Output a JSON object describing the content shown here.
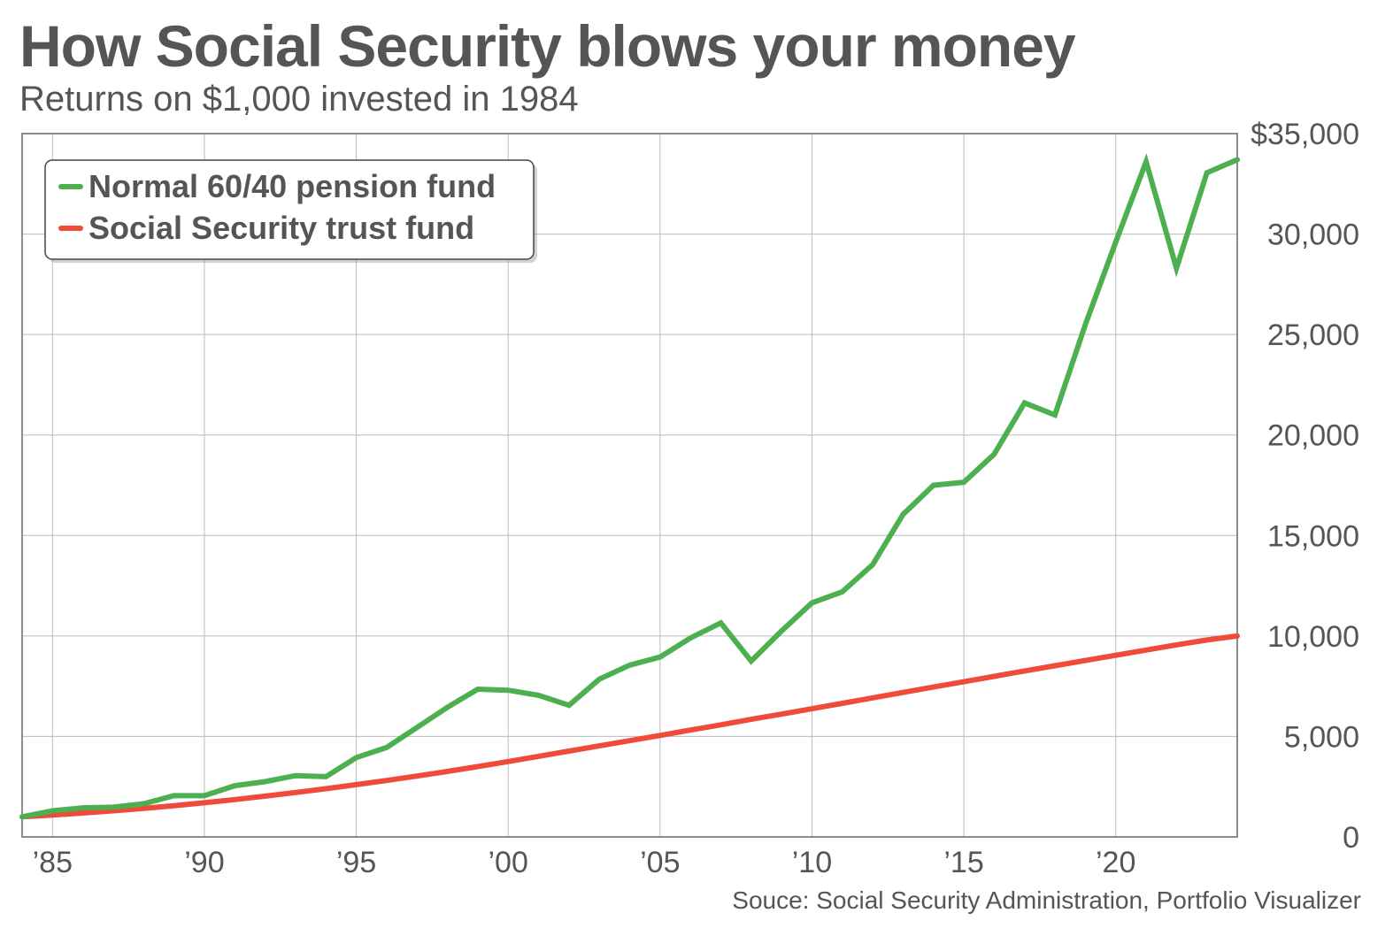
{
  "title": "How Social Security blows your money",
  "subtitle": "Returns on $1,000 invested in 1984",
  "source": "Souce: Social Security Administration, Portfolio Visualizer",
  "colors": {
    "pension": "#4caf50",
    "social_security": "#f04a3a",
    "grid": "#bbbbbb",
    "text": "#555555"
  },
  "chart_data": {
    "type": "line",
    "title": "How Social Security blows your money",
    "subtitle": "Returns on $1,000 invested in 1984",
    "xlim": [
      1984,
      2024
    ],
    "ylim": [
      0,
      35000
    ],
    "grid": true,
    "legend_position": "top-left",
    "x_ticks": [
      1985,
      1990,
      1995,
      2000,
      2005,
      2010,
      2015,
      2020
    ],
    "x_tick_labels": [
      "’85",
      "’90",
      "’95",
      "’00",
      "’05",
      "’10",
      "’15",
      "’20"
    ],
    "y_ticks": [
      0,
      5000,
      10000,
      15000,
      20000,
      25000,
      30000,
      35000
    ],
    "y_tick_labels": [
      "0",
      "5,000",
      "10,000",
      "15,000",
      "20,000",
      "25,000",
      "30,000",
      "$35,000"
    ],
    "x": [
      1984,
      1985,
      1986,
      1987,
      1988,
      1989,
      1990,
      1991,
      1992,
      1993,
      1994,
      1995,
      1996,
      1997,
      1998,
      1999,
      2000,
      2001,
      2002,
      2003,
      2004,
      2005,
      2006,
      2007,
      2008,
      2009,
      2010,
      2011,
      2012,
      2013,
      2014,
      2015,
      2016,
      2017,
      2018,
      2019,
      2020,
      2021,
      2022,
      2023,
      2024
    ],
    "series": [
      {
        "name": "Normal 60/40 pension fund",
        "values": [
          1000,
          1300,
          1450,
          1480,
          1650,
          2050,
          2050,
          2550,
          2750,
          3050,
          3000,
          3950,
          4450,
          5450,
          6450,
          7350,
          7300,
          7050,
          6550,
          7850,
          8550,
          8950,
          9900,
          10650,
          8750,
          10250,
          11650,
          12200,
          13550,
          16050,
          17500,
          17650,
          19050,
          21600,
          21000,
          25500,
          29600,
          33600,
          28300,
          33050,
          33700
        ]
      },
      {
        "name": "Social Security trust fund",
        "values": [
          1000,
          1090,
          1190,
          1300,
          1420,
          1550,
          1700,
          1860,
          2030,
          2210,
          2400,
          2600,
          2810,
          3030,
          3260,
          3500,
          3750,
          4010,
          4270,
          4530,
          4790,
          5050,
          5320,
          5580,
          5850,
          6110,
          6380,
          6650,
          6920,
          7190,
          7460,
          7720,
          7990,
          8260,
          8520,
          8780,
          9040,
          9300,
          9560,
          9800,
          10000
        ]
      }
    ]
  }
}
